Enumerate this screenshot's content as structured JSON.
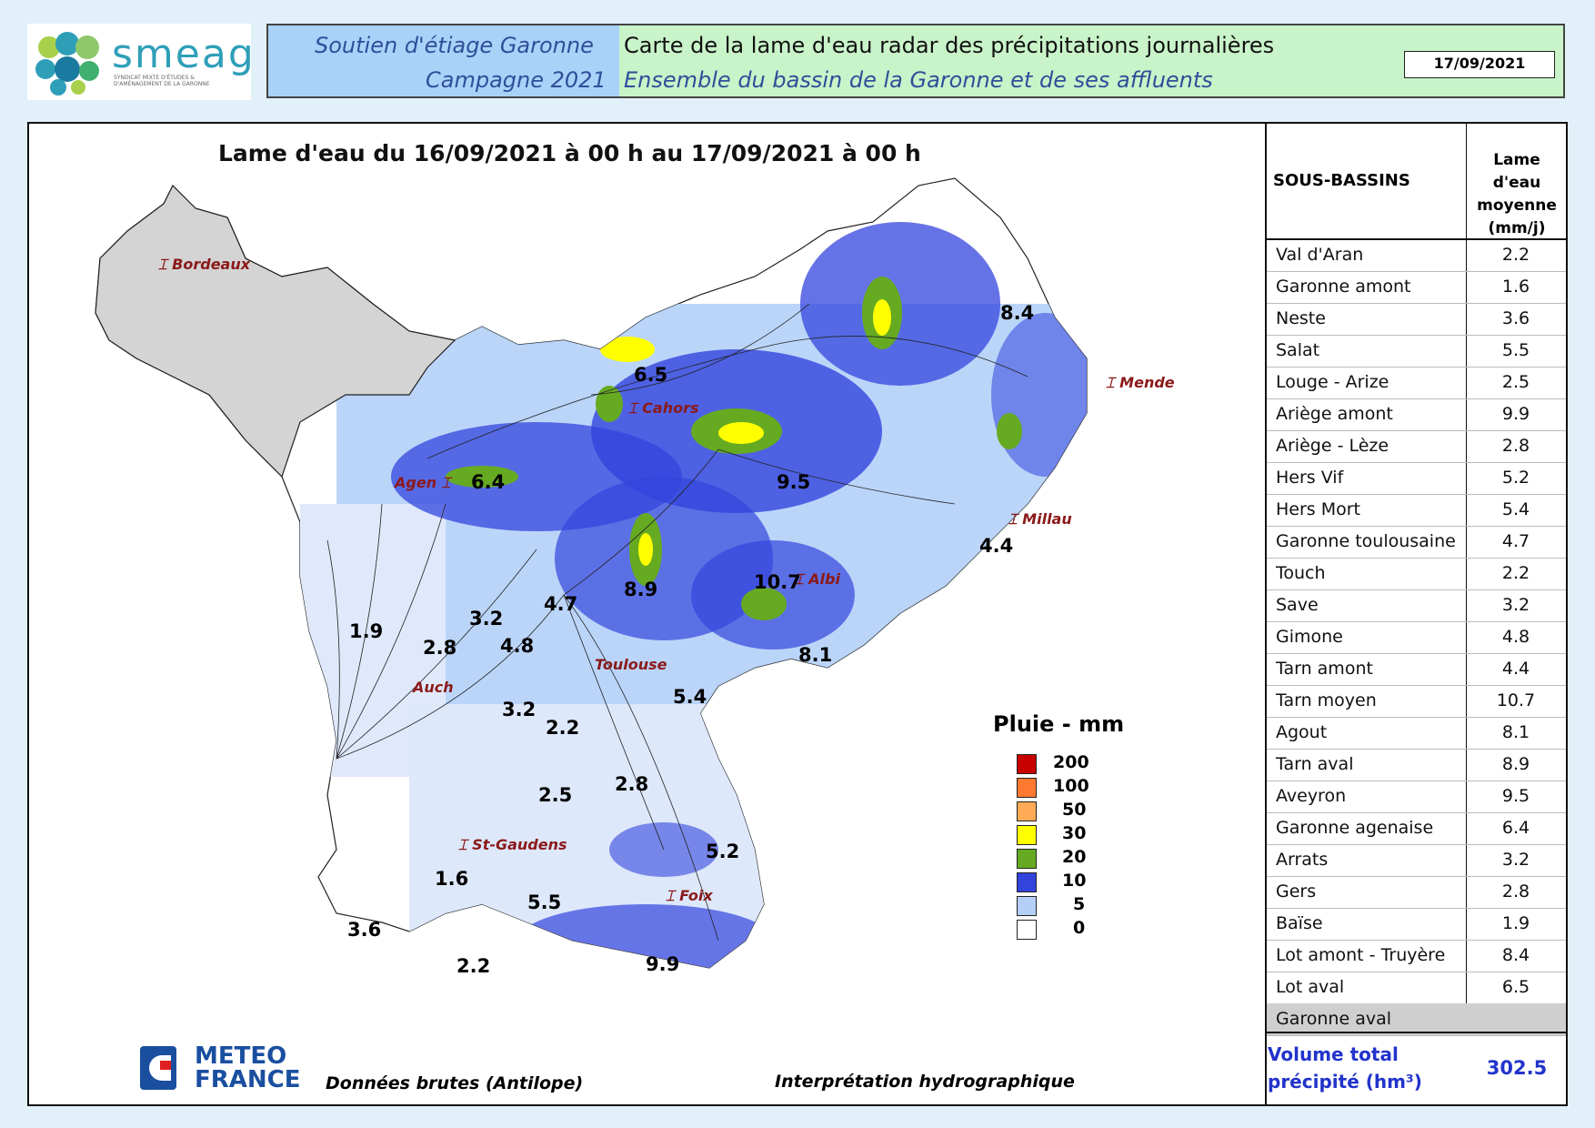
{
  "header": {
    "logo_text": "smeag",
    "logo_subtext": "SYNDICAT MIXTE D'ÉTUDES & D'AMÉNAGEMENT DE LA GARONNE",
    "line1_left": "Soutien d'étiage Garonne",
    "line2_left": "Campagne 2021",
    "line1_right": "Carte de la lame d'eau radar des précipitations journalières",
    "line2_right": "Ensemble du bassin de la Garonne et de ses affluents",
    "date": "17/09/2021"
  },
  "map": {
    "title": "Lame d'eau du 16/09/2021 à 00 h au 17/09/2021 à 00 h",
    "cities": [
      "Bordeaux",
      "Cahors",
      "Mende",
      "Agen",
      "Millau",
      "Albi",
      "Toulouse",
      "Auch",
      "St-Gaudens",
      "Foix"
    ],
    "basin_values": [
      "8.4",
      "6.5",
      "6.4",
      "9.5",
      "4.4",
      "10.7",
      "8.9",
      "4.7",
      "3.2",
      "1.9",
      "2.8",
      "4.8",
      "8.1",
      "5.4",
      "3.2",
      "2.2",
      "2.8",
      "2.5",
      "5.2",
      "1.6",
      "5.5",
      "3.6",
      "2.2",
      "9.9"
    ],
    "legend": {
      "title": "Pluie - mm",
      "items": [
        {
          "label": "200",
          "color": "#c80000"
        },
        {
          "label": "100",
          "color": "#ff7a30"
        },
        {
          "label": "50",
          "color": "#ffaa55"
        },
        {
          "label": "30",
          "color": "#ffff00"
        },
        {
          "label": "20",
          "color": "#66aa22"
        },
        {
          "label": "10",
          "color": "#3344dd"
        },
        {
          "label": "5",
          "color": "#b4d0f8"
        },
        {
          "label": "0",
          "color": "#ffffff"
        }
      ]
    },
    "footer_brand_line1": "METEO",
    "footer_brand_line2": "FRANCE",
    "footer_left": "Données brutes (Antilope)",
    "footer_right": "Interprétation hydrographique"
  },
  "table": {
    "col1_header": "SOUS-BASSINS",
    "col2_header_l1": "Lame d'eau",
    "col2_header_l2": "moyenne",
    "col2_header_l3": "(mm/j)",
    "rows": [
      {
        "name": "Val d'Aran",
        "value": "2.2"
      },
      {
        "name": "Garonne amont",
        "value": "1.6"
      },
      {
        "name": "Neste",
        "value": "3.6"
      },
      {
        "name": "Salat",
        "value": "5.5"
      },
      {
        "name": "Louge - Arize",
        "value": "2.5"
      },
      {
        "name": "Ariège amont",
        "value": "9.9"
      },
      {
        "name": "Ariège - Lèze",
        "value": "2.8"
      },
      {
        "name": "Hers Vif",
        "value": "5.2"
      },
      {
        "name": "Hers Mort",
        "value": "5.4"
      },
      {
        "name": "Garonne toulousaine",
        "value": "4.7"
      },
      {
        "name": "Touch",
        "value": "2.2"
      },
      {
        "name": "Save",
        "value": "3.2"
      },
      {
        "name": "Gimone",
        "value": "4.8"
      },
      {
        "name": "Tarn amont",
        "value": "4.4"
      },
      {
        "name": "Tarn moyen",
        "value": "10.7"
      },
      {
        "name": "Agout",
        "value": "8.1"
      },
      {
        "name": "Tarn aval",
        "value": "8.9"
      },
      {
        "name": "Aveyron",
        "value": "9.5"
      },
      {
        "name": "Garonne agenaise",
        "value": "6.4"
      },
      {
        "name": "Arrats",
        "value": "3.2"
      },
      {
        "name": "Gers",
        "value": "2.8"
      },
      {
        "name": "Baïse",
        "value": "1.9"
      },
      {
        "name": "Lot amont - Truyère",
        "value": "8.4"
      },
      {
        "name": "Lot aval",
        "value": "6.5"
      },
      {
        "name": "Garonne aval",
        "value": ""
      }
    ],
    "total_label_l1": "Volume total",
    "total_label_l2": "précipité (hm³)",
    "total_value": "302.5"
  },
  "colors": {
    "page_bg": "#e2f0fa",
    "header_green": "#c9f3c9",
    "header_blue": "#a8d2f8",
    "title_blue": "#2e4f99",
    "city": "#8b1a1a",
    "gray_basin": "#d4d4d4"
  }
}
